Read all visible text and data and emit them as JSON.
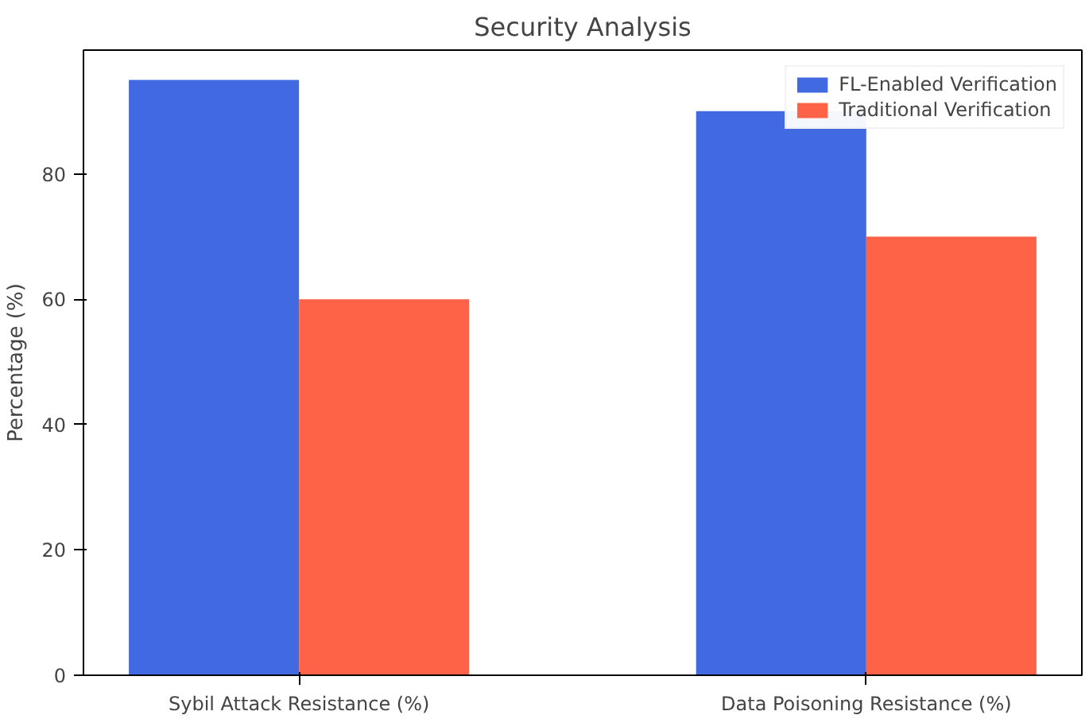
{
  "chart_data": {
    "type": "bar",
    "title": "Security Analysis",
    "ylabel": "Percentage (%)",
    "categories": [
      "Sybil Attack Resistance (%)",
      "Data Poisoning Resistance (%)"
    ],
    "series": [
      {
        "name": "FL-Enabled Verification",
        "color": "#4169e1",
        "values": [
          95,
          90
        ]
      },
      {
        "name": "Traditional Verification",
        "color": "#ff6347",
        "values": [
          60,
          70
        ]
      }
    ],
    "ylim": [
      0,
      99.75
    ],
    "yticks": [
      0,
      20,
      40,
      60,
      80
    ],
    "legend": "top right"
  }
}
